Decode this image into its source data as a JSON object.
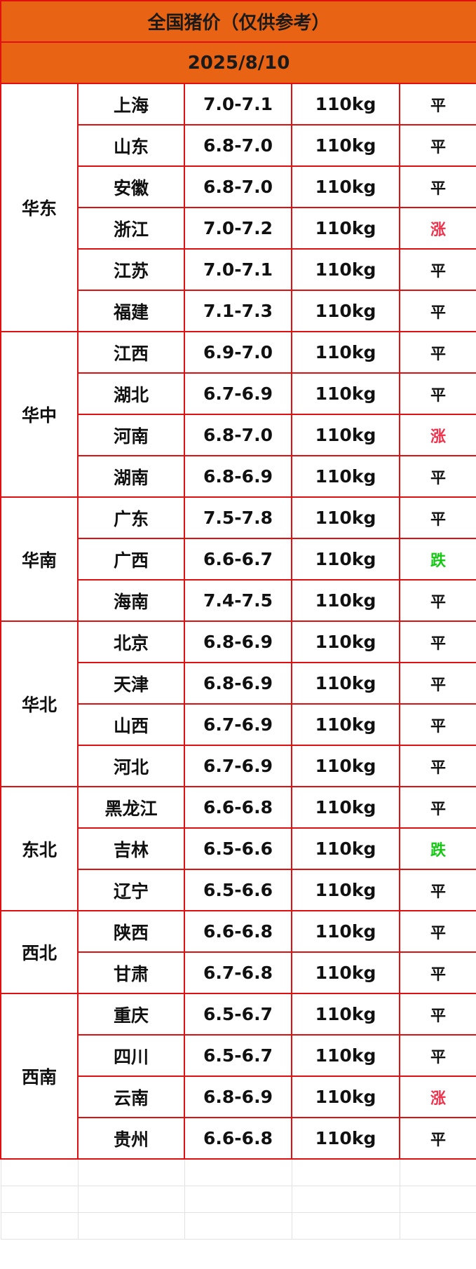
{
  "title": "全国猪价（仅供参考）",
  "date": "2025/8/10",
  "colors": {
    "header_bg": "#e86414",
    "border": "#e01010",
    "up": "#f0304a",
    "down": "#14c814"
  },
  "regions": [
    {
      "name": "华东",
      "rows": [
        {
          "province": "上海",
          "price": "7.0-7.1",
          "weight": "110kg",
          "trend": "平"
        },
        {
          "province": "山东",
          "price": "6.8-7.0",
          "weight": "110kg",
          "trend": "平"
        },
        {
          "province": "安徽",
          "price": "6.8-7.0",
          "weight": "110kg",
          "trend": "平"
        },
        {
          "province": "浙江",
          "price": "7.0-7.2",
          "weight": "110kg",
          "trend": "涨"
        },
        {
          "province": "江苏",
          "price": "7.0-7.1",
          "weight": "110kg",
          "trend": "平"
        },
        {
          "province": "福建",
          "price": "7.1-7.3",
          "weight": "110kg",
          "trend": "平"
        }
      ]
    },
    {
      "name": "华中",
      "rows": [
        {
          "province": "江西",
          "price": "6.9-7.0",
          "weight": "110kg",
          "trend": "平"
        },
        {
          "province": "湖北",
          "price": "6.7-6.9",
          "weight": "110kg",
          "trend": "平"
        },
        {
          "province": "河南",
          "price": "6.8-7.0",
          "weight": "110kg",
          "trend": "涨"
        },
        {
          "province": "湖南",
          "price": "6.8-6.9",
          "weight": "110kg",
          "trend": "平"
        }
      ]
    },
    {
      "name": "华南",
      "rows": [
        {
          "province": "广东",
          "price": "7.5-7.8",
          "weight": "110kg",
          "trend": "平"
        },
        {
          "province": "广西",
          "price": "6.6-6.7",
          "weight": "110kg",
          "trend": "跌"
        },
        {
          "province": "海南",
          "price": "7.4-7.5",
          "weight": "110kg",
          "trend": "平"
        }
      ]
    },
    {
      "name": "华北",
      "rows": [
        {
          "province": "北京",
          "price": "6.8-6.9",
          "weight": "110kg",
          "trend": "平"
        },
        {
          "province": "天津",
          "price": "6.8-6.9",
          "weight": "110kg",
          "trend": "平"
        },
        {
          "province": "山西",
          "price": "6.7-6.9",
          "weight": "110kg",
          "trend": "平"
        },
        {
          "province": "河北",
          "price": "6.7-6.9",
          "weight": "110kg",
          "trend": "平"
        }
      ]
    },
    {
      "name": "东北",
      "rows": [
        {
          "province": "黑龙江",
          "price": "6.6-6.8",
          "weight": "110kg",
          "trend": "平"
        },
        {
          "province": "吉林",
          "price": "6.5-6.6",
          "weight": "110kg",
          "trend": "跌"
        },
        {
          "province": "辽宁",
          "price": "6.5-6.6",
          "weight": "110kg",
          "trend": "平"
        }
      ]
    },
    {
      "name": "西北",
      "rows": [
        {
          "province": "陕西",
          "price": "6.6-6.8",
          "weight": "110kg",
          "trend": "平"
        },
        {
          "province": "甘肃",
          "price": "6.7-6.8",
          "weight": "110kg",
          "trend": "平"
        }
      ]
    },
    {
      "name": "西南",
      "rows": [
        {
          "province": "重庆",
          "price": "6.5-6.7",
          "weight": "110kg",
          "trend": "平"
        },
        {
          "province": "四川",
          "price": "6.5-6.7",
          "weight": "110kg",
          "trend": "平"
        },
        {
          "province": "云南",
          "price": "6.8-6.9",
          "weight": "110kg",
          "trend": "涨"
        },
        {
          "province": "贵州",
          "price": "6.6-6.8",
          "weight": "110kg",
          "trend": "平"
        }
      ]
    }
  ]
}
